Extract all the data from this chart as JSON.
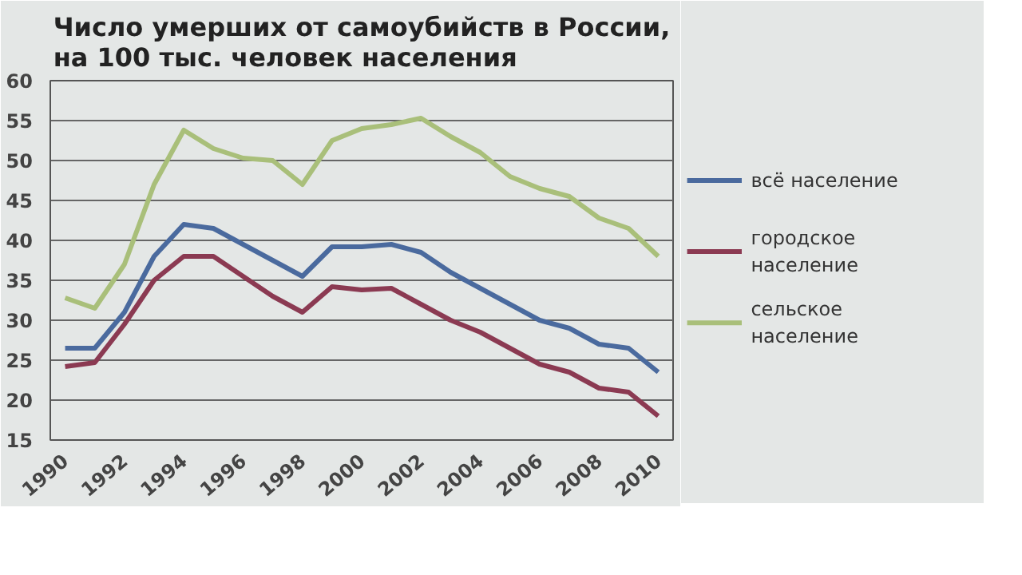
{
  "chart_data": {
    "type": "line",
    "title": "Число умерших от самоубийств в России,\nна 100 тыс. человек населения",
    "x": [
      1990,
      1991,
      1992,
      1993,
      1994,
      1995,
      1996,
      1997,
      1998,
      1999,
      2000,
      2001,
      2002,
      2003,
      2004,
      2005,
      2006,
      2007,
      2008,
      2009,
      2010
    ],
    "series": [
      {
        "name": "всё население",
        "color": "#4a6a9e",
        "values": [
          26.5,
          26.5,
          31,
          38,
          42,
          41.5,
          39.5,
          37.5,
          35.5,
          39.2,
          39.2,
          39.5,
          38.5,
          36,
          34,
          32,
          30,
          29,
          27,
          26.5,
          23.5
        ]
      },
      {
        "name": "городское\nнаселение",
        "color": "#8b3a52",
        "values": [
          24.2,
          24.7,
          29.5,
          35,
          38,
          38,
          35.5,
          33,
          31,
          34.2,
          33.8,
          34,
          32,
          30,
          28.5,
          26.5,
          24.5,
          23.5,
          21.5,
          21,
          18
        ]
      },
      {
        "name": "сельское\nнаселение",
        "color": "#a9bf7a",
        "values": [
          32.8,
          31.5,
          37,
          47,
          53.8,
          51.5,
          50.3,
          50,
          47,
          52.5,
          54,
          54.5,
          55.3,
          53,
          51,
          48,
          46.5,
          45.5,
          42.8,
          41.5,
          38
        ]
      }
    ],
    "xlim": [
      1989.5,
      2010.5
    ],
    "xticks": [
      1990,
      1992,
      1994,
      1996,
      1998,
      2000,
      2002,
      2004,
      2006,
      2008,
      2010
    ],
    "ylim": [
      15,
      60
    ],
    "yticks": [
      15,
      20,
      25,
      30,
      35,
      40,
      45,
      50,
      55,
      60
    ],
    "grid": "y",
    "legend": "right",
    "line_style": "solid"
  }
}
